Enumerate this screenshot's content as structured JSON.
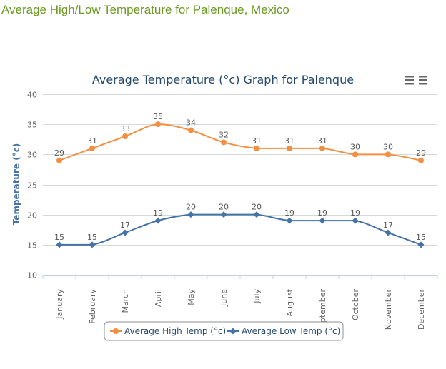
{
  "page": {
    "title": "Average High/Low Temperature for Palenque, Mexico"
  },
  "colors": {
    "high": "#f28f43",
    "low": "#4572a7",
    "title_text": "#274b6d",
    "page_title": "#6b9a23",
    "grid": "#d8d8d8",
    "axis_text": "#606060"
  },
  "chart_data": {
    "type": "line",
    "title": "Average Temperature (°c) Graph for Palenque",
    "xlabel": "",
    "ylabel": "Temperature (°c)",
    "ylim": [
      10,
      40
    ],
    "yticks": [
      10,
      15,
      20,
      25,
      30,
      35,
      40
    ],
    "grid": true,
    "legend_position": "bottom-center",
    "categories": [
      "January",
      "February",
      "March",
      "April",
      "May",
      "June",
      "July",
      "August",
      "September",
      "October",
      "November",
      "December"
    ],
    "series": [
      {
        "name": "Average High Temp (°c)",
        "values": [
          29,
          31,
          33,
          35,
          34,
          32,
          31,
          31,
          31,
          30,
          30,
          29
        ],
        "marker": "circle"
      },
      {
        "name": "Average Low Temp (°c)",
        "values": [
          15,
          15,
          17,
          19,
          20,
          20,
          20,
          19,
          19,
          19,
          17,
          15
        ],
        "marker": "diamond"
      }
    ]
  }
}
